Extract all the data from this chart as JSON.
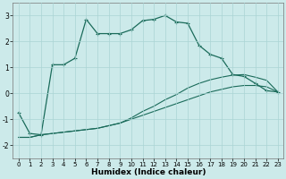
{
  "xlabel": "Humidex (Indice chaleur)",
  "background_color": "#cceaea",
  "grid_color": "#aad4d4",
  "line_color": "#1a6b5a",
  "xlim": [
    -0.5,
    23.5
  ],
  "ylim": [
    -2.5,
    3.5
  ],
  "yticks": [
    -2,
    -1,
    0,
    1,
    2,
    3
  ],
  "xticks": [
    0,
    1,
    2,
    3,
    4,
    5,
    6,
    7,
    8,
    9,
    10,
    11,
    12,
    13,
    14,
    15,
    16,
    17,
    18,
    19,
    20,
    21,
    22,
    23
  ],
  "line1_x": [
    0,
    1,
    2,
    3,
    4,
    5,
    6,
    7,
    8,
    9,
    10,
    11,
    12,
    13,
    14,
    15,
    16,
    17,
    18,
    19,
    20,
    21,
    22,
    23
  ],
  "line1_y": [
    -1.7,
    -1.7,
    -1.6,
    -1.55,
    -1.5,
    -1.45,
    -1.4,
    -1.35,
    -1.25,
    -1.15,
    -1.0,
    -0.85,
    -0.7,
    -0.55,
    -0.4,
    -0.25,
    -0.1,
    0.05,
    0.15,
    0.25,
    0.3,
    0.3,
    0.25,
    0.05
  ],
  "line2_x": [
    0,
    1,
    2,
    3,
    4,
    5,
    6,
    7,
    8,
    9,
    10,
    11,
    12,
    13,
    14,
    15,
    16,
    17,
    18,
    19,
    20,
    21,
    22,
    23
  ],
  "line2_y": [
    -1.7,
    -1.7,
    -1.6,
    -1.55,
    -1.5,
    -1.45,
    -1.4,
    -1.35,
    -1.25,
    -1.15,
    -0.95,
    -0.7,
    -0.5,
    -0.25,
    -0.05,
    0.2,
    0.38,
    0.52,
    0.62,
    0.7,
    0.72,
    0.62,
    0.5,
    0.05
  ],
  "line3_x": [
    0,
    1,
    2,
    3,
    4,
    5,
    6,
    7,
    8,
    9,
    10,
    11,
    12,
    13,
    14,
    15,
    16,
    17,
    18,
    19,
    20,
    21,
    22,
    23
  ],
  "line3_y": [
    -0.75,
    -1.55,
    -1.6,
    1.1,
    1.1,
    1.35,
    2.85,
    2.3,
    2.3,
    2.3,
    2.45,
    2.8,
    2.85,
    3.0,
    2.75,
    2.7,
    1.85,
    1.5,
    1.35,
    0.72,
    0.65,
    0.38,
    0.1,
    0.05
  ]
}
